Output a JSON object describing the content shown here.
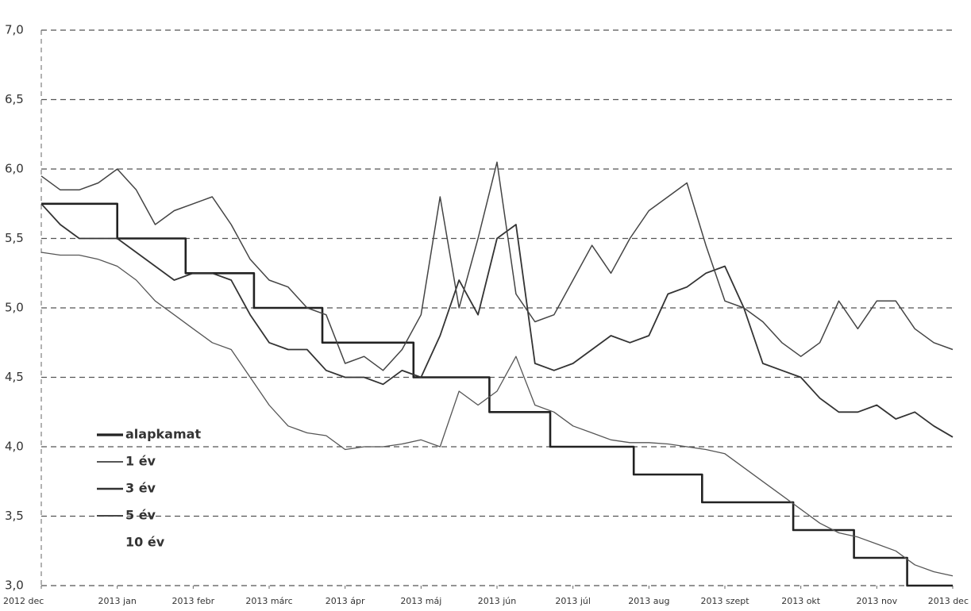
{
  "chart_data": {
    "type": "line",
    "x": [
      0,
      0.25,
      0.5,
      0.75,
      1,
      1.25,
      1.5,
      1.75,
      2,
      2.25,
      2.5,
      2.75,
      3,
      3.25,
      3.5,
      3.75,
      4,
      4.25,
      4.5,
      4.75,
      5,
      5.25,
      5.5,
      5.75,
      6,
      6.25,
      6.5,
      6.75,
      7,
      7.25,
      7.5,
      7.75,
      8,
      8.25,
      8.5,
      8.75,
      9,
      9.25,
      9.5,
      9.75,
      10,
      10.25,
      10.5,
      10.75,
      11,
      11.25,
      11.5,
      11.75,
      12
    ],
    "series": [
      {
        "name": "alapkamat",
        "color": "#222222",
        "line_width": 2.6,
        "x": [
          0,
          1,
          1,
          1.9,
          1.9,
          2.8,
          2.8,
          3.7,
          3.7,
          4.9,
          4.9,
          5.9,
          5.9,
          6.7,
          6.7,
          7.8,
          7.8,
          8.7,
          8.7,
          9.9,
          9.9,
          10.7,
          10.7,
          11.4,
          11.4,
          12
        ],
        "values": [
          5.75,
          5.75,
          5.5,
          5.5,
          5.25,
          5.25,
          5.0,
          5.0,
          4.75,
          4.75,
          4.5,
          4.5,
          4.25,
          4.25,
          4.0,
          4.0,
          3.8,
          3.8,
          3.6,
          3.6,
          3.4,
          3.4,
          3.2,
          3.2,
          3.0,
          3.0
        ]
      },
      {
        "name": "1 év",
        "color": "#555555",
        "line_width": 1.3,
        "values": [
          5.4,
          5.38,
          5.38,
          5.35,
          5.3,
          5.2,
          5.05,
          4.95,
          4.85,
          4.75,
          4.7,
          4.5,
          4.3,
          4.15,
          4.1,
          4.08,
          3.98,
          4.0,
          4.0,
          4.02,
          4.05,
          4.0,
          4.4,
          4.3,
          4.4,
          4.65,
          4.3,
          4.25,
          4.15,
          4.1,
          4.05,
          4.03,
          4.03,
          4.02,
          4.0,
          3.98,
          3.95,
          3.85,
          3.75,
          3.65,
          3.55,
          3.45,
          3.38,
          3.35,
          3.3,
          3.25,
          3.15,
          3.1,
          3.07
        ]
      },
      {
        "name": "3 év",
        "color": "#333333",
        "line_width": 1.8,
        "values": [
          5.75,
          5.6,
          5.5,
          5.5,
          5.5,
          5.4,
          5.3,
          5.2,
          5.25,
          5.25,
          5.2,
          4.95,
          4.75,
          4.7,
          4.7,
          4.55,
          4.5,
          4.5,
          4.45,
          4.55,
          4.5,
          4.8,
          5.2,
          4.95,
          5.5,
          5.6,
          4.6,
          4.55,
          4.6,
          4.7,
          4.8,
          4.75,
          4.8,
          5.1,
          5.15,
          5.25,
          5.3,
          5.0,
          4.6,
          4.55,
          4.5,
          4.35,
          4.25,
          4.25,
          4.3,
          4.2,
          4.25,
          4.15,
          4.07
        ]
      },
      {
        "name": "5 év",
        "color": "#444444",
        "line_width": 1.5,
        "values": [
          5.95,
          5.85,
          5.85,
          5.9,
          6.0,
          5.85,
          5.6,
          5.7,
          5.75,
          5.8,
          5.6,
          5.35,
          5.2,
          5.15,
          5.0,
          4.95,
          4.6,
          4.65,
          4.55,
          4.7,
          4.95,
          5.8,
          5.0,
          5.5,
          6.05,
          5.1,
          4.9,
          4.95,
          5.2,
          5.45,
          5.25,
          5.5,
          5.7,
          5.8,
          5.9,
          5.45,
          5.05,
          5.0,
          4.9,
          4.75,
          4.65,
          4.75,
          5.05,
          4.85,
          5.05,
          5.05,
          4.85,
          4.75,
          4.7
        ]
      }
    ],
    "legend_note": "10 év",
    "xlim": [
      0,
      12
    ],
    "xticks": [
      {
        "value": 0,
        "label": "2012 dec"
      },
      {
        "value": 1,
        "label": "2013 jan"
      },
      {
        "value": 2,
        "label": "2013 febr"
      },
      {
        "value": 3,
        "label": "2013 márc"
      },
      {
        "value": 4,
        "label": "2013 ápr"
      },
      {
        "value": 5,
        "label": "2013 máj"
      },
      {
        "value": 6,
        "label": "2013 jún"
      },
      {
        "value": 7,
        "label": "2013 júl"
      },
      {
        "value": 8,
        "label": "2013 aug"
      },
      {
        "value": 9,
        "label": "2013 szept"
      },
      {
        "value": 10,
        "label": "2013 okt"
      },
      {
        "value": 11,
        "label": "2013 nov"
      },
      {
        "value": 12,
        "label": "2013 dec"
      }
    ],
    "ylim": [
      3.0,
      7.0
    ],
    "yticks": [
      {
        "value": 3.0,
        "label": "3,0"
      },
      {
        "value": 3.5,
        "label": "3,5"
      },
      {
        "value": 4.0,
        "label": "4,0"
      },
      {
        "value": 4.5,
        "label": "4,5"
      },
      {
        "value": 5.0,
        "label": "5,0"
      },
      {
        "value": 5.5,
        "label": "5,5"
      },
      {
        "value": 6.0,
        "label": "6,0"
      },
      {
        "value": 6.5,
        "label": "6,5"
      },
      {
        "value": 7.0,
        "label": "7,0"
      }
    ],
    "grid": true
  }
}
